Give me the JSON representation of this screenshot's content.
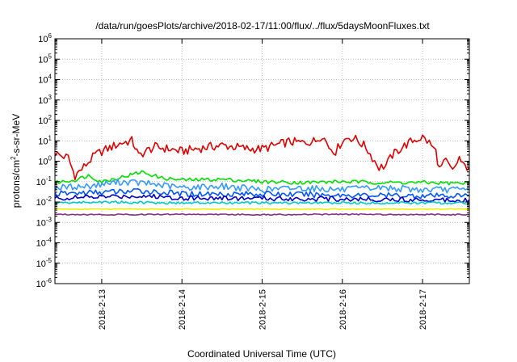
{
  "chart_data": {
    "type": "line",
    "title": "/data/run/goesPlots/archive/2018-02-17/11:00/flux/../flux/5daysMoonFluxes.txt",
    "xlabel": "Coordinated Universal Time (UTC)",
    "ylabel_parts": [
      "protons/cm",
      "2",
      "-s-sr-MeV"
    ],
    "yscale": "log",
    "ylim": [
      1e-06,
      1000000.0
    ],
    "y_ticks": [
      {
        "base": "10",
        "exp": "-6",
        "value": 1e-06
      },
      {
        "base": "10",
        "exp": "-5",
        "value": 1e-05
      },
      {
        "base": "10",
        "exp": "-4",
        "value": 0.0001
      },
      {
        "base": "10",
        "exp": "-3",
        "value": 0.001
      },
      {
        "base": "10",
        "exp": "-2",
        "value": 0.01
      },
      {
        "base": "10",
        "exp": "-1",
        "value": 0.1
      },
      {
        "base": "10",
        "exp": "0",
        "value": 1
      },
      {
        "base": "10",
        "exp": "1",
        "value": 10
      },
      {
        "base": "10",
        "exp": "2",
        "value": 100
      },
      {
        "base": "10",
        "exp": "3",
        "value": 1000
      },
      {
        "base": "10",
        "exp": "4",
        "value": 10000
      },
      {
        "base": "10",
        "exp": "5",
        "value": 100000
      },
      {
        "base": "10",
        "exp": "6",
        "value": 1000000
      }
    ],
    "xlim": [
      "2018-02-12T10:00",
      "2018-02-17T14:00"
    ],
    "x_ticks": [
      {
        "label": "2018-2-13",
        "value": "2018-02-13T00:00"
      },
      {
        "label": "2018-2-14",
        "value": "2018-02-14T00:00"
      },
      {
        "label": "2018-2-15",
        "value": "2018-02-15T00:00"
      },
      {
        "label": "2018-2-16",
        "value": "2018-02-16T00:00"
      },
      {
        "label": "2018-2-17",
        "value": "2018-02-17T00:00"
      }
    ],
    "grid": true,
    "legend": "none",
    "series": [
      {
        "color": "#e00000",
        "points": [
          [
            "2018-02-12T10:00",
            2.5
          ],
          [
            "2018-02-12T12:00",
            1.8
          ],
          [
            "2018-02-12T14:00",
            1.5
          ],
          [
            "2018-02-12T15:00",
            0.5
          ],
          [
            "2018-02-12T16:00",
            0.2
          ],
          [
            "2018-02-12T18:00",
            0.4
          ],
          [
            "2018-02-12T20:00",
            0.9
          ],
          [
            "2018-02-12T22:00",
            2.0
          ],
          [
            "2018-02-13T00:00",
            3.0
          ],
          [
            "2018-02-13T03:00",
            5.0
          ],
          [
            "2018-02-13T06:00",
            8.0
          ],
          [
            "2018-02-13T09:00",
            10.0
          ],
          [
            "2018-02-13T10:00",
            5.0
          ],
          [
            "2018-02-13T11:00",
            1.8
          ],
          [
            "2018-02-13T13:00",
            3.0
          ],
          [
            "2018-02-13T16:00",
            5.0
          ],
          [
            "2018-02-13T20:00",
            4.0
          ],
          [
            "2018-02-14T00:00",
            3.0
          ],
          [
            "2018-02-14T04:00",
            4.0
          ],
          [
            "2018-02-14T08:00",
            5.0
          ],
          [
            "2018-02-14T12:00",
            6.0
          ],
          [
            "2018-02-14T16:00",
            5.0
          ],
          [
            "2018-02-14T20:00",
            4.0
          ],
          [
            "2018-02-15T00:00",
            4.0
          ],
          [
            "2018-02-15T04:00",
            6.0
          ],
          [
            "2018-02-15T08:00",
            9.0
          ],
          [
            "2018-02-15T12:00",
            8.0
          ],
          [
            "2018-02-15T16:00",
            10.0
          ],
          [
            "2018-02-15T18:00",
            20.0
          ],
          [
            "2018-02-15T20:00",
            5.0
          ],
          [
            "2018-02-15T22:00",
            3.0
          ],
          [
            "2018-02-16T00:00",
            10.0
          ],
          [
            "2018-02-16T02:00",
            15.0
          ],
          [
            "2018-02-16T04:00",
            12.0
          ],
          [
            "2018-02-16T07:00",
            5.0
          ],
          [
            "2018-02-16T09:00",
            1.5
          ],
          [
            "2018-02-16T11:00",
            0.5
          ],
          [
            "2018-02-16T13:00",
            0.6
          ],
          [
            "2018-02-16T15:00",
            2.0
          ],
          [
            "2018-02-16T18:00",
            5.0
          ],
          [
            "2018-02-16T21:00",
            10.0
          ],
          [
            "2018-02-17T00:00",
            15.0
          ],
          [
            "2018-02-17T02:00",
            8.0
          ],
          [
            "2018-02-17T04:00",
            3.0
          ],
          [
            "2018-02-17T05:00",
            0.4
          ],
          [
            "2018-02-17T07:00",
            1.0
          ],
          [
            "2018-02-17T09:00",
            0.3
          ],
          [
            "2018-02-17T11:00",
            1.5
          ],
          [
            "2018-02-17T12:00",
            0.6
          ],
          [
            "2018-02-17T14:00",
            0.5
          ]
        ]
      },
      {
        "color": "#00e000",
        "points": [
          [
            "2018-02-12T10:00",
            0.09
          ],
          [
            "2018-02-12T16:00",
            0.12
          ],
          [
            "2018-02-12T20:00",
            0.2
          ],
          [
            "2018-02-13T00:00",
            0.1
          ],
          [
            "2018-02-13T08:00",
            0.2
          ],
          [
            "2018-02-13T12:00",
            0.3
          ],
          [
            "2018-02-13T18:00",
            0.15
          ],
          [
            "2018-02-14T00:00",
            0.12
          ],
          [
            "2018-02-14T12:00",
            0.13
          ],
          [
            "2018-02-15T00:00",
            0.1
          ],
          [
            "2018-02-15T12:00",
            0.09
          ],
          [
            "2018-02-16T00:00",
            0.1
          ],
          [
            "2018-02-16T12:00",
            0.09
          ],
          [
            "2018-02-17T00:00",
            0.09
          ],
          [
            "2018-02-17T14:00",
            0.08
          ]
        ]
      },
      {
        "color": "#3399ff",
        "points": [
          [
            "2018-02-12T10:00",
            0.05
          ],
          [
            "2018-02-12T20:00",
            0.06
          ],
          [
            "2018-02-13T06:00",
            0.1
          ],
          [
            "2018-02-13T14:00",
            0.08
          ],
          [
            "2018-02-14T00:00",
            0.05
          ],
          [
            "2018-02-14T12:00",
            0.06
          ],
          [
            "2018-02-15T00:00",
            0.04
          ],
          [
            "2018-02-15T12:00",
            0.05
          ],
          [
            "2018-02-16T00:00",
            0.04
          ],
          [
            "2018-02-16T12:00",
            0.05
          ],
          [
            "2018-02-17T00:00",
            0.04
          ],
          [
            "2018-02-17T14:00",
            0.04
          ]
        ]
      },
      {
        "color": "#0055ff",
        "points": [
          [
            "2018-02-12T10:00",
            0.025
          ],
          [
            "2018-02-13T00:00",
            0.03
          ],
          [
            "2018-02-13T12:00",
            0.035
          ],
          [
            "2018-02-14T00:00",
            0.025
          ],
          [
            "2018-02-15T00:00",
            0.025
          ],
          [
            "2018-02-16T00:00",
            0.022
          ],
          [
            "2018-02-17T00:00",
            0.02
          ],
          [
            "2018-02-17T14:00",
            0.02
          ]
        ]
      },
      {
        "color": "#0000c8",
        "points": [
          [
            "2018-02-12T10:00",
            0.015
          ],
          [
            "2018-02-13T00:00",
            0.018
          ],
          [
            "2018-02-13T12:00",
            0.02
          ],
          [
            "2018-02-14T00:00",
            0.016
          ],
          [
            "2018-02-15T00:00",
            0.015
          ],
          [
            "2018-02-16T00:00",
            0.014
          ],
          [
            "2018-02-17T00:00",
            0.013
          ],
          [
            "2018-02-17T14:00",
            0.013
          ]
        ]
      },
      {
        "color": "#00cccc",
        "points": [
          [
            "2018-02-12T10:00",
            0.009
          ],
          [
            "2018-02-13T00:00",
            0.01
          ],
          [
            "2018-02-14T00:00",
            0.009
          ],
          [
            "2018-02-15T00:00",
            0.009
          ],
          [
            "2018-02-16T00:00",
            0.009
          ],
          [
            "2018-02-17T14:00",
            0.009
          ]
        ]
      },
      {
        "color": "#eeee00",
        "points": [
          [
            "2018-02-12T10:00",
            0.0045
          ],
          [
            "2018-02-13T00:00",
            0.0045
          ],
          [
            "2018-02-14T00:00",
            0.0045
          ],
          [
            "2018-02-15T00:00",
            0.0045
          ],
          [
            "2018-02-16T00:00",
            0.0045
          ],
          [
            "2018-02-17T14:00",
            0.0045
          ]
        ]
      },
      {
        "color": "#8b2c8b",
        "points": [
          [
            "2018-02-12T10:00",
            0.0025
          ],
          [
            "2018-02-13T00:00",
            0.0024
          ],
          [
            "2018-02-14T00:00",
            0.0025
          ],
          [
            "2018-02-15T00:00",
            0.0024
          ],
          [
            "2018-02-16T00:00",
            0.0025
          ],
          [
            "2018-02-17T14:00",
            0.0024
          ]
        ]
      }
    ]
  }
}
